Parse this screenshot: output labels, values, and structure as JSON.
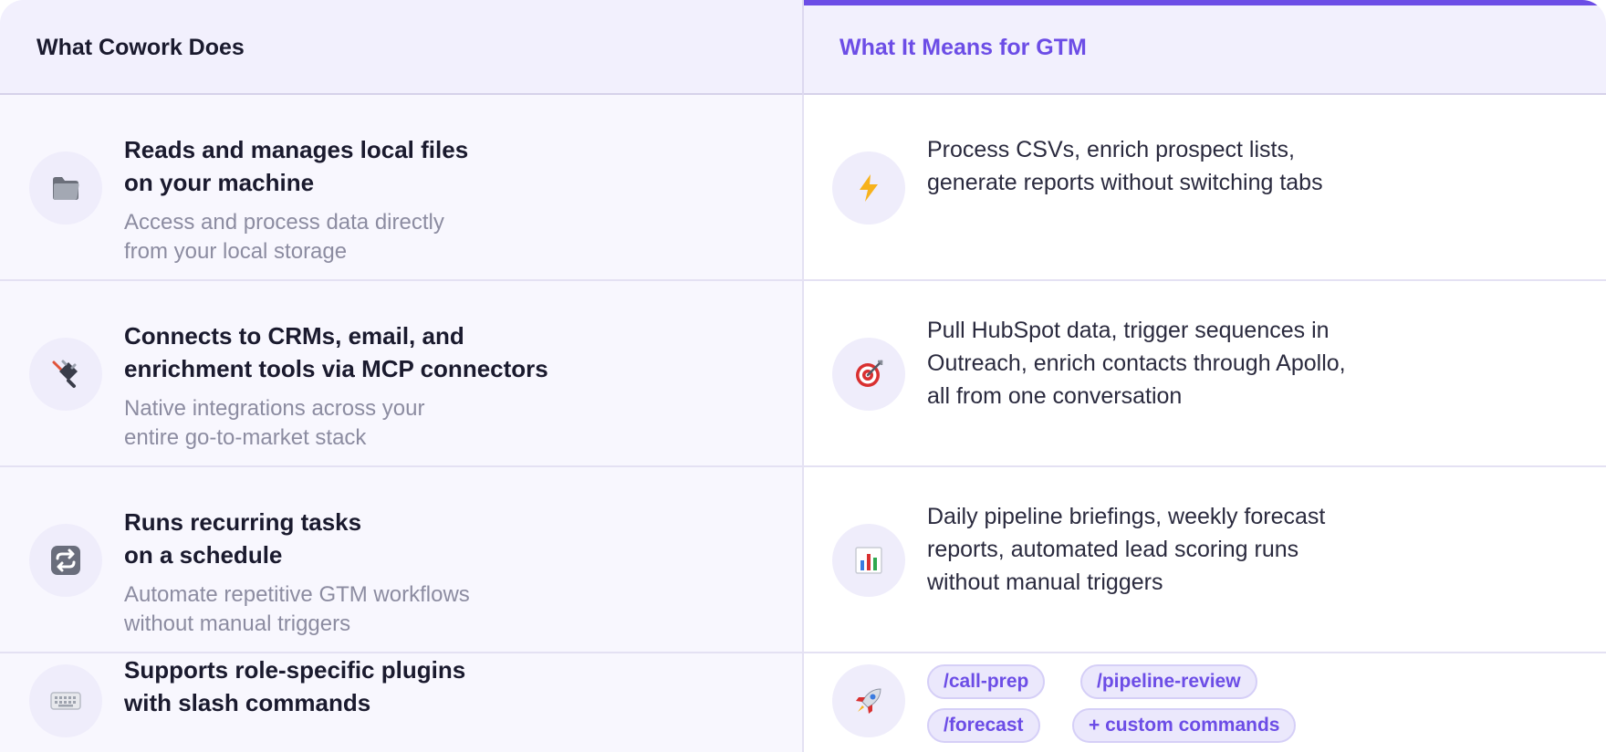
{
  "header": {
    "left_title": "What Cowork Does",
    "right_title": "What It Means for GTM"
  },
  "rows": [
    {
      "feature_icon": "folder-icon",
      "feature_title": "Reads and manages local files\non your machine",
      "feature_desc": "Access and process data directly\nfrom your local storage",
      "gtm_icon": "lightning-icon",
      "gtm_text": "Process CSVs, enrich prospect lists,\ngenerate reports without switching tabs"
    },
    {
      "feature_icon": "plug-icon",
      "feature_title": "Connects to CRMs, email, and\nenrichment tools via MCP connectors",
      "feature_desc": "Native integrations across your\nentire go-to-market stack",
      "gtm_icon": "target-icon",
      "gtm_text": "Pull HubSpot data, trigger sequences in\nOutreach, enrich contacts through Apollo,\nall from one conversation"
    },
    {
      "feature_icon": "repeat-icon",
      "feature_title": "Runs recurring tasks\non a schedule",
      "feature_desc": "Automate repetitive GTM workflows\nwithout manual triggers",
      "gtm_icon": "bar-chart-icon",
      "gtm_text": "Daily pipeline briefings, weekly forecast\nreports, automated lead scoring runs\nwithout manual triggers"
    },
    {
      "feature_icon": "keyboard-icon",
      "feature_title": "Supports role-specific plugins\nwith slash commands",
      "gtm_icon": "rocket-icon",
      "commands": [
        "/call-prep",
        "/pipeline-review",
        "/forecast",
        "+ custom commands"
      ]
    }
  ],
  "colors": {
    "accent": "#6c4de6",
    "header_bg": "#f2f0fd",
    "left_col_bg": "#f8f7fe",
    "title_text": "#1a1a2e",
    "muted_text": "#8c8ca1"
  }
}
